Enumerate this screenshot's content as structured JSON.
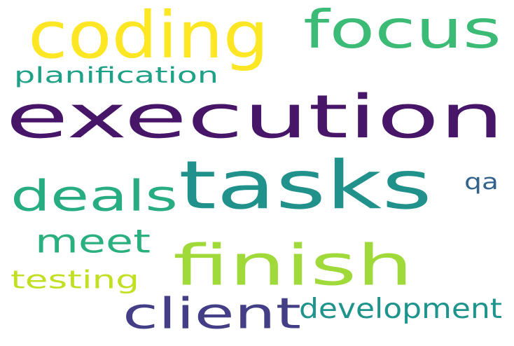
{
  "words": [
    {
      "text": "execution",
      "color": "#481668"
    },
    {
      "text": "tasks",
      "color": "#21918c"
    },
    {
      "text": "coding",
      "color": "#fde725"
    },
    {
      "text": "focus",
      "color": "#3bbb75"
    },
    {
      "text": "finish",
      "color": "#9fda3a"
    },
    {
      "text": "deals",
      "color": "#27ad81"
    },
    {
      "text": "client",
      "color": "#433e85"
    },
    {
      "text": "meet",
      "color": "#2ab07f"
    },
    {
      "text": "development",
      "color": "#1f948c"
    },
    {
      "text": "testing",
      "color": "#c2df23"
    },
    {
      "text": "planification",
      "color": "#1fa187"
    },
    {
      "text": "qa",
      "color": "#33638d"
    }
  ]
}
